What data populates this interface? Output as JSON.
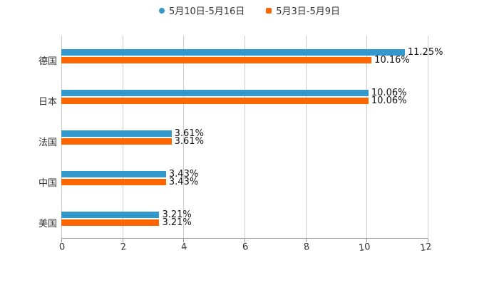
{
  "chart_data": {
    "type": "bar",
    "orientation": "horizontal",
    "title": "",
    "xlabel": "",
    "ylabel": "",
    "xlim": [
      0,
      12
    ],
    "x_ticks": [
      "0",
      "2",
      "4",
      "6",
      "8",
      "10",
      "12"
    ],
    "grid": true,
    "legend_position": "top",
    "categories": [
      "德国",
      "日本",
      "法国",
      "中国",
      "美国"
    ],
    "series": [
      {
        "name": "5月10日-5月16日",
        "color": "#3399cc",
        "values": [
          11.25,
          10.06,
          3.61,
          3.43,
          3.21
        ],
        "labels": [
          "11.25%",
          "10.06%",
          "3.61%",
          "3.43%",
          "3.21%"
        ]
      },
      {
        "name": "5月3日-5月9日",
        "color": "#ff6600",
        "values": [
          10.16,
          10.06,
          3.61,
          3.43,
          3.21
        ],
        "labels": [
          "10.16%",
          "10.06%",
          "3.61%",
          "3.43%",
          "3.21%"
        ]
      }
    ]
  },
  "legend": {
    "s1": "5月10日-5月16日",
    "s2": "5月3日-5月9日"
  }
}
